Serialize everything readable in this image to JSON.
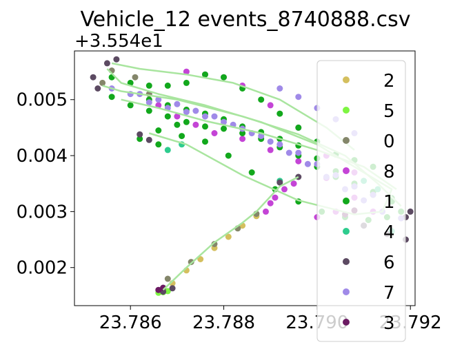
{
  "chart_data": {
    "type": "scatter",
    "title": "Vehicle_12 events_8740888.csv",
    "xlabel": "",
    "ylabel": "",
    "y_offset_text": "+3.554e1",
    "xlim": [
      23.7848,
      23.7921
    ],
    "ylim": [
      0.00132,
      0.00587
    ],
    "x_ticks": [
      23.786,
      23.788,
      23.79,
      23.792
    ],
    "x_tick_labels": [
      "23.786",
      "23.788",
      "23.790",
      "23.792"
    ],
    "y_ticks": [
      0.002,
      0.003,
      0.004,
      0.005
    ],
    "y_tick_labels": [
      "0.002",
      "0.003",
      "0.004",
      "0.005"
    ],
    "grid": false,
    "legend_position": "right",
    "series": [
      {
        "name": "2",
        "color": "#d4bf5e",
        "points": [
          [
            23.7867,
            0.00158
          ],
          [
            23.7869,
            0.00172
          ],
          [
            23.7872,
            0.00195
          ],
          [
            23.7875,
            0.00215
          ],
          [
            23.7878,
            0.00235
          ],
          [
            23.7881,
            0.00255
          ],
          [
            23.7884,
            0.00275
          ],
          [
            23.7887,
            0.00292
          ]
        ]
      },
      {
        "name": "5",
        "color": "#7ef542",
        "points": [
          [
            23.7866,
            0.00155
          ],
          [
            23.7867,
            0.00156
          ],
          [
            23.7868,
            0.00158
          ]
        ]
      },
      {
        "name": "0",
        "color": "#84866a",
        "points": [
          [
            23.7868,
            0.0018
          ],
          [
            23.7873,
            0.0021
          ],
          [
            23.7878,
            0.00242
          ],
          [
            23.7883,
            0.0027
          ],
          [
            23.7887,
            0.00296
          ],
          [
            23.7856,
            0.00552
          ],
          [
            23.7854,
            0.0053
          ],
          [
            23.7861,
            0.0054
          ],
          [
            23.7864,
            0.0051
          ]
        ]
      },
      {
        "name": "8",
        "color": "#c444d6",
        "points": [
          [
            23.7889,
            0.003
          ],
          [
            23.789,
            0.00315
          ],
          [
            23.7891,
            0.00325
          ],
          [
            23.7893,
            0.0034
          ],
          [
            23.7895,
            0.0035
          ],
          [
            23.7872,
            0.0055
          ],
          [
            23.7876,
            0.00545
          ],
          [
            23.788,
            0.0054
          ],
          [
            23.7884,
            0.00525
          ],
          [
            23.789,
            0.0049
          ],
          [
            23.7896,
            0.0045
          ],
          [
            23.7902,
            0.004
          ],
          [
            23.7908,
            0.0037
          ],
          [
            23.7866,
            0.0049
          ],
          [
            23.787,
            0.0047
          ],
          [
            23.7874,
            0.00455
          ],
          [
            23.7878,
            0.0044
          ],
          [
            23.7884,
            0.0043
          ],
          [
            23.789,
            0.0041
          ],
          [
            23.7896,
            0.0039
          ],
          [
            23.7902,
            0.0036
          ],
          [
            23.7908,
            0.00325
          ],
          [
            23.7912,
            0.003
          ],
          [
            23.79,
            0.0029
          ],
          [
            23.7904,
            0.003
          ],
          [
            23.791,
            0.00275
          ]
        ]
      },
      {
        "name": "1",
        "color": "#12a81c",
        "points": [
          [
            23.7856,
            0.0054
          ],
          [
            23.786,
            0.0053
          ],
          [
            23.7864,
            0.00525
          ],
          [
            23.7868,
            0.00525
          ],
          [
            23.7872,
            0.0053
          ],
          [
            23.7876,
            0.00545
          ],
          [
            23.788,
            0.0054
          ],
          [
            23.7884,
            0.0052
          ],
          [
            23.7888,
            0.005
          ],
          [
            23.7892,
            0.00475
          ],
          [
            23.7896,
            0.0045
          ],
          [
            23.79,
            0.00425
          ],
          [
            23.7904,
            0.00402
          ],
          [
            23.7908,
            0.00392
          ],
          [
            23.7912,
            0.0038
          ],
          [
            23.7856,
            0.00505
          ],
          [
            23.786,
            0.0049
          ],
          [
            23.7864,
            0.0048
          ],
          [
            23.7868,
            0.0047
          ],
          [
            23.7872,
            0.0046
          ],
          [
            23.7876,
            0.00452
          ],
          [
            23.788,
            0.00448
          ],
          [
            23.7884,
            0.0044
          ],
          [
            23.7888,
            0.0043
          ],
          [
            23.7892,
            0.00415
          ],
          [
            23.7896,
            0.004
          ],
          [
            23.79,
            0.0038
          ],
          [
            23.7904,
            0.00362
          ],
          [
            23.7908,
            0.00345
          ],
          [
            23.7912,
            0.0033
          ],
          [
            23.7916,
            0.00318
          ],
          [
            23.7864,
            0.005
          ],
          [
            23.7868,
            0.0049
          ],
          [
            23.7872,
            0.00482
          ],
          [
            23.7876,
            0.00475
          ],
          [
            23.788,
            0.00465
          ],
          [
            23.7884,
            0.00452
          ],
          [
            23.7888,
            0.00442
          ],
          [
            23.7892,
            0.0043
          ],
          [
            23.7896,
            0.00418
          ],
          [
            23.79,
            0.00395
          ],
          [
            23.7904,
            0.00372
          ],
          [
            23.7908,
            0.0035
          ],
          [
            23.7912,
            0.00335
          ],
          [
            23.7916,
            0.00324
          ],
          [
            23.7918,
            0.003
          ],
          [
            23.7915,
            0.0029
          ],
          [
            23.7911,
            0.00285
          ],
          [
            23.7906,
            0.0029
          ],
          [
            23.7901,
            0.003
          ],
          [
            23.7896,
            0.00318
          ],
          [
            23.7891,
            0.0034
          ],
          [
            23.7886,
            0.0037
          ],
          [
            23.7881,
            0.004
          ],
          [
            23.7876,
            0.00425
          ],
          [
            23.7871,
            0.00435
          ],
          [
            23.7866,
            0.0042
          ],
          [
            23.7862,
            0.0043
          ],
          [
            23.7866,
            0.00445
          ],
          [
            23.787,
            0.00455
          ]
        ]
      },
      {
        "name": "4",
        "color": "#2ecc8e",
        "points": [
          [
            23.7892,
            0.00355
          ],
          [
            23.7913,
            0.0034
          ],
          [
            23.791,
            0.00355
          ],
          [
            23.7916,
            0.00265
          ],
          [
            23.7871,
            0.0042
          ],
          [
            23.7868,
            0.0041
          ]
        ]
      },
      {
        "name": "6",
        "color": "#5c4a62",
        "points": [
          [
            23.7867,
            0.00157
          ],
          [
            23.7869,
            0.00163
          ],
          [
            23.7855,
            0.00565
          ],
          [
            23.7857,
            0.00572
          ],
          [
            23.7852,
            0.0054
          ],
          [
            23.7853,
            0.0052
          ],
          [
            23.7862,
            0.00438
          ],
          [
            23.7864,
            0.00428
          ],
          [
            23.7892,
            0.00352
          ],
          [
            23.7896,
            0.00362
          ],
          [
            23.7919,
            0.0029
          ],
          [
            23.792,
            0.003
          ],
          [
            23.7919,
            0.0025
          ],
          [
            23.7915,
            0.0026
          ],
          [
            23.791,
            0.00275
          ]
        ]
      },
      {
        "name": "7",
        "color": "#a08ae8",
        "points": [
          [
            23.7856,
            0.0052
          ],
          [
            23.786,
            0.0051
          ],
          [
            23.7864,
            0.00495
          ],
          [
            23.7868,
            0.00485
          ],
          [
            23.7872,
            0.00478
          ],
          [
            23.7876,
            0.0047
          ],
          [
            23.788,
            0.0046
          ],
          [
            23.7884,
            0.00448
          ],
          [
            23.7888,
            0.00435
          ],
          [
            23.7892,
            0.0042
          ],
          [
            23.7896,
            0.00405
          ],
          [
            23.79,
            0.00385
          ],
          [
            23.7904,
            0.00365
          ],
          [
            23.7908,
            0.00345
          ],
          [
            23.7912,
            0.0033
          ],
          [
            23.7862,
            0.0051
          ],
          [
            23.7866,
            0.005
          ],
          [
            23.787,
            0.00492
          ],
          [
            23.7874,
            0.0048
          ],
          [
            23.7878,
            0.0047
          ],
          [
            23.7882,
            0.00455
          ],
          [
            23.7886,
            0.0044
          ],
          [
            23.789,
            0.00425
          ],
          [
            23.7894,
            0.00405
          ],
          [
            23.7898,
            0.00385
          ],
          [
            23.7902,
            0.00362
          ],
          [
            23.7906,
            0.0034
          ],
          [
            23.791,
            0.0032
          ],
          [
            23.7914,
            0.003
          ],
          [
            23.7918,
            0.00288
          ],
          [
            23.7892,
            0.0052
          ],
          [
            23.7896,
            0.00505
          ],
          [
            23.79,
            0.00485
          ],
          [
            23.7904,
            0.00465
          ],
          [
            23.7908,
            0.0044
          ]
        ]
      },
      {
        "name": "3",
        "color": "#6b1a62",
        "points": [
          [
            23.7866,
            0.0016
          ],
          [
            23.7867,
            0.00164
          ],
          [
            23.7906,
            0.00295
          ],
          [
            23.7908,
            0.00302
          ]
        ]
      }
    ],
    "overlay_path_color": "#a9e59f",
    "overlay_paths": [
      [
        [
          23.7867,
          0.0016
        ],
        [
          23.7872,
          0.002
        ],
        [
          23.7878,
          0.00245
        ],
        [
          23.7884,
          0.0028
        ],
        [
          23.7887,
          0.003
        ],
        [
          23.7889,
          0.00318
        ],
        [
          23.7892,
          0.00345
        ],
        [
          23.7896,
          0.00362
        ]
      ],
      [
        [
          23.7855,
          0.00555
        ],
        [
          23.7858,
          0.0053
        ],
        [
          23.7866,
          0.0051
        ],
        [
          23.7876,
          0.0049
        ],
        [
          23.7888,
          0.0046
        ],
        [
          23.79,
          0.0042
        ],
        [
          23.791,
          0.0037
        ],
        [
          23.7916,
          0.0034
        ],
        [
          23.7914,
          0.003
        ],
        [
          23.7908,
          0.00295
        ],
        [
          23.7896,
          0.0032
        ],
        [
          23.7884,
          0.00365
        ],
        [
          23.7872,
          0.0042
        ],
        [
          23.7864,
          0.0044
        ]
      ],
      [
        [
          23.7854,
          0.00525
        ],
        [
          23.7858,
          0.00515
        ],
        [
          23.787,
          0.005
        ],
        [
          23.7884,
          0.0047
        ],
        [
          23.7896,
          0.00438
        ],
        [
          23.7906,
          0.004
        ],
        [
          23.7913,
          0.0035
        ],
        [
          23.7918,
          0.0031
        ]
      ],
      [
        [
          23.7856,
          0.00565
        ],
        [
          23.7862,
          0.00555
        ],
        [
          23.7872,
          0.00545
        ],
        [
          23.7882,
          0.0053
        ],
        [
          23.7892,
          0.005
        ],
        [
          23.7902,
          0.0045
        ],
        [
          23.7908,
          0.0041
        ]
      ],
      [
        [
          23.7858,
          0.005
        ],
        [
          23.7866,
          0.00485
        ],
        [
          23.7876,
          0.00462
        ],
        [
          23.7888,
          0.0044
        ],
        [
          23.79,
          0.0041
        ],
        [
          23.791,
          0.0038
        ],
        [
          23.7917,
          0.0034
        ]
      ]
    ]
  }
}
